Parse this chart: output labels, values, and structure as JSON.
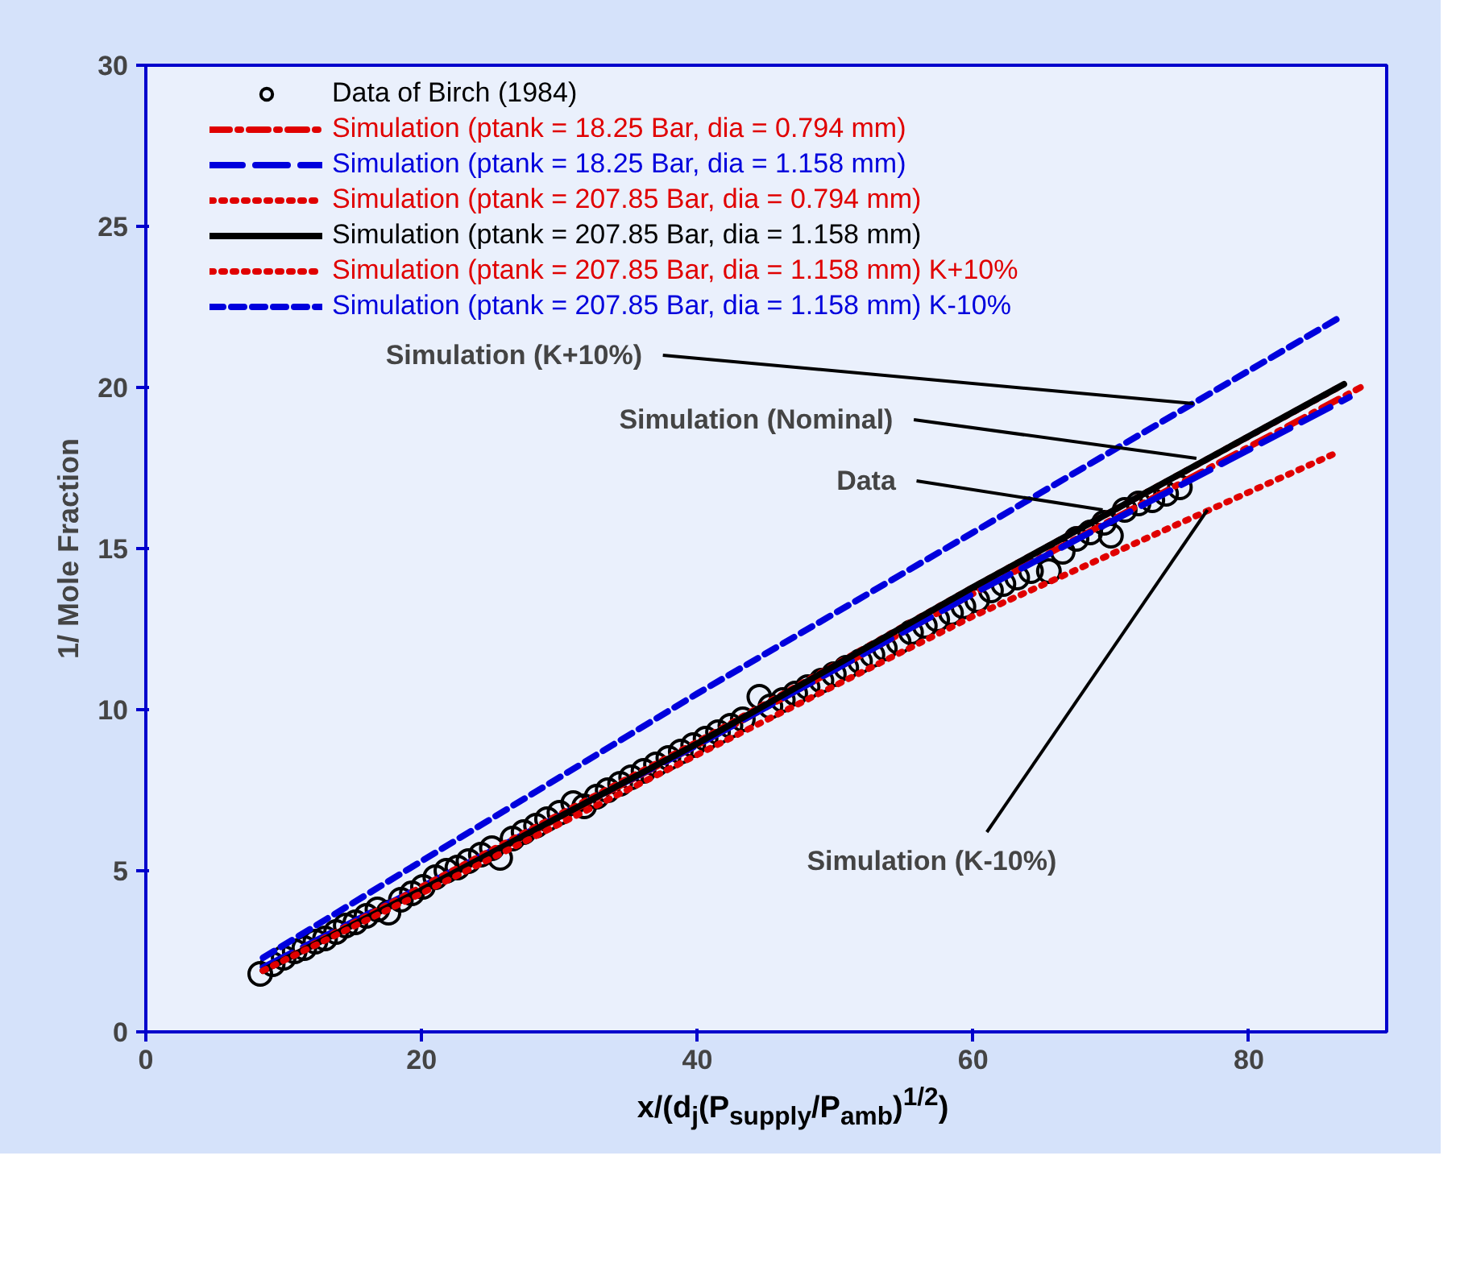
{
  "chart_data": {
    "type": "line",
    "xlabel": "x/(d$_{j}$(P$_{supply}$/P$_{amb}$)$^{1/2}$)",
    "ylabel": "1/ Mole Fraction",
    "xlim": [
      0,
      90
    ],
    "ylim": [
      0,
      30
    ],
    "xticks": [
      0,
      20,
      40,
      60,
      80
    ],
    "yticks": [
      0,
      5,
      10,
      15,
      20,
      25,
      30
    ],
    "grid": false,
    "legend": "top",
    "series": [
      {
        "name": "Data of Birch (1984)",
        "type": "scatter",
        "marker": "circle",
        "color": "#000000",
        "x": [
          8.3,
          9.2,
          10.0,
          10.8,
          11.5,
          12.3,
          13.0,
          13.8,
          14.5,
          15.2,
          16.0,
          16.8,
          17.6,
          18.5,
          19.3,
          20.1,
          21.0,
          21.8,
          22.6,
          23.4,
          24.3,
          25.1,
          25.7,
          26.6,
          27.4,
          28.3,
          29.1,
          30.0,
          31.0,
          31.8,
          32.7,
          33.5,
          34.4,
          35.2,
          36.1,
          37.0,
          37.9,
          38.8,
          39.7,
          40.6,
          41.5,
          42.4,
          43.3,
          44.5,
          45.3,
          46.2,
          47.1,
          48.0,
          49.0,
          49.9,
          50.8,
          51.8,
          52.7,
          53.6,
          54.6,
          55.5,
          56.5,
          57.4,
          58.4,
          59.3,
          60.3,
          61.3,
          62.2,
          63.2,
          64.2,
          65.5,
          66.5,
          67.5,
          68.5,
          69.5,
          70.0,
          71.0,
          72.0,
          73.0,
          74.0,
          75.0
        ],
        "values": [
          1.8,
          2.1,
          2.3,
          2.5,
          2.6,
          2.8,
          2.9,
          3.1,
          3.3,
          3.4,
          3.6,
          3.8,
          3.7,
          4.1,
          4.3,
          4.5,
          4.8,
          5.0,
          5.1,
          5.3,
          5.5,
          5.7,
          5.4,
          6.0,
          6.2,
          6.4,
          6.6,
          6.8,
          7.1,
          7.0,
          7.3,
          7.5,
          7.7,
          7.9,
          8.1,
          8.3,
          8.5,
          8.7,
          8.9,
          9.1,
          9.3,
          9.5,
          9.7,
          10.4,
          10.1,
          10.3,
          10.5,
          10.7,
          10.9,
          11.1,
          11.3,
          11.5,
          11.7,
          11.9,
          12.1,
          12.4,
          12.6,
          12.8,
          13.0,
          13.2,
          13.4,
          13.7,
          13.9,
          14.1,
          14.3,
          14.3,
          14.9,
          15.3,
          15.5,
          15.8,
          15.4,
          16.2,
          16.4,
          16.5,
          16.7,
          16.9
        ]
      },
      {
        "name": "Simulation (ptank = 18.25 Bar, dia = 0.794 mm)",
        "color": "#e00000",
        "line_style": "dashdot",
        "x": [
          8.5,
          20,
          40,
          60,
          88.1
        ],
        "values": [
          1.9,
          4.4,
          8.9,
          13.6,
          20.0
        ]
      },
      {
        "name": "Simulation (ptank = 18.25 Bar, dia = 1.158 mm)",
        "color": "#0000dd",
        "line_style": "longdash",
        "x": [
          8.5,
          20,
          40,
          60,
          87.3
        ],
        "values": [
          2.0,
          4.5,
          8.9,
          13.6,
          19.7
        ]
      },
      {
        "name": "Simulation (ptank = 207.85 Bar, dia = 0.794 mm)",
        "color": "#e00000",
        "line_style": "dotted",
        "x": [
          8.5,
          20,
          40,
          60,
          86.5
        ],
        "values": [
          1.9,
          4.5,
          9.0,
          13.8,
          20.0
        ]
      },
      {
        "name": "Simulation (ptank = 207.85 Bar, dia = 1.158 mm)",
        "color": "#000000",
        "line_style": "solid",
        "x": [
          8.5,
          20,
          40,
          60,
          86.9
        ],
        "values": [
          1.9,
          4.4,
          8.95,
          13.8,
          20.1
        ]
      },
      {
        "name": "Simulation (ptank = 207.85 Bar, dia = 1.158 mm) K+10%",
        "color": "#e00000",
        "line_style": "dotted",
        "x": [
          8.5,
          20,
          40,
          60,
          86.5
        ],
        "values": [
          1.9,
          4.3,
          8.6,
          12.9,
          18.0
        ]
      },
      {
        "name": "Simulation (ptank = 207.85 Bar, dia = 1.158 mm) K-10%",
        "color": "#0000dd",
        "line_style": "dashed",
        "x": [
          8.5,
          20,
          40,
          60,
          86.7
        ],
        "values": [
          2.3,
          5.3,
          10.5,
          15.5,
          22.2
        ]
      }
    ],
    "annotations": [
      {
        "text": "Simulation (K+10%)",
        "x": 76,
        "y": 19.5
      },
      {
        "text": "Simulation (Nominal)",
        "x": 76.2,
        "y": 17.8
      },
      {
        "text": "Data",
        "x": 69.4,
        "y": 16.2
      },
      {
        "text": "Simulation (K-10%)",
        "x": 77,
        "y": 16.2
      }
    ]
  }
}
